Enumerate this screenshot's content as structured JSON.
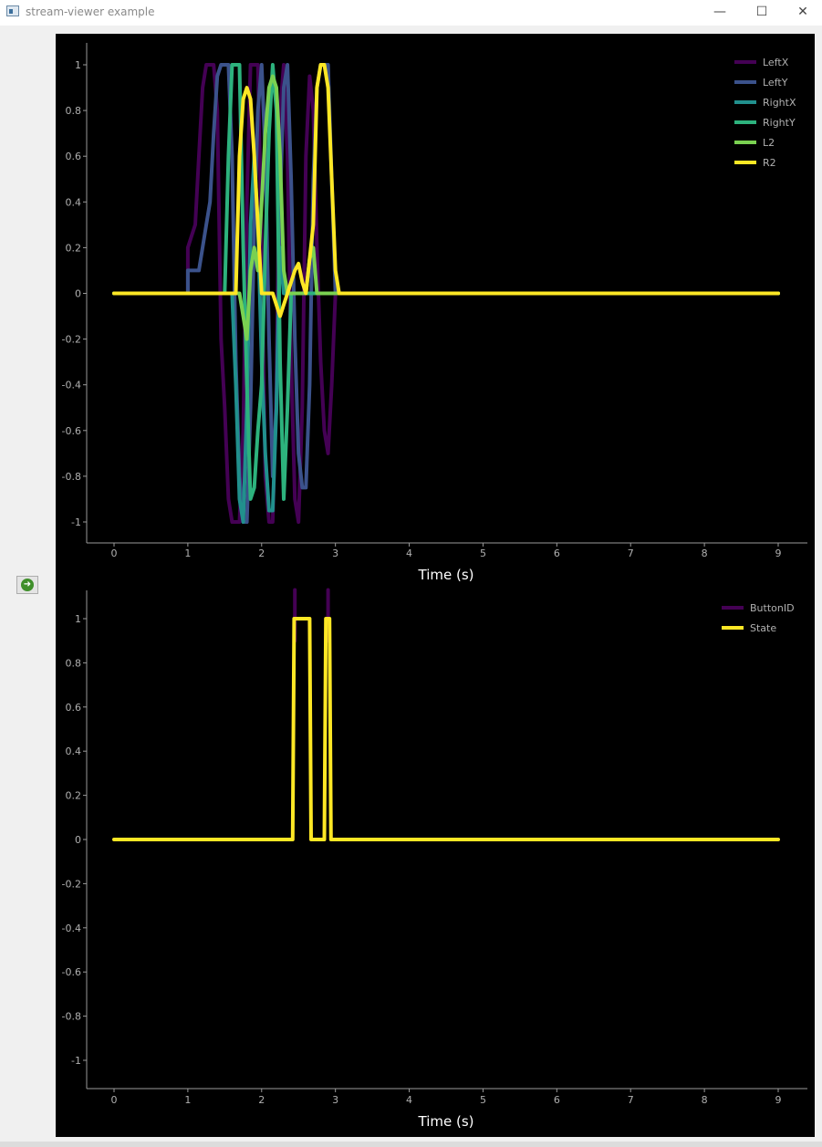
{
  "window": {
    "title": "stream-viewer example",
    "controls": {
      "minimize": "—",
      "maximize": "☐",
      "close": "✕"
    }
  },
  "sidebar": {
    "start_button_icon": "arrow-right-circle-icon"
  },
  "colors": {
    "background": "#000000",
    "axis": "#9a9a9a",
    "series": {
      "LeftX": "#440154",
      "LeftY": "#3b528b",
      "RightX": "#21908d",
      "RightY": "#2db27d",
      "L2": "#7ad151",
      "R2": "#fde725",
      "ButtonID": "#440154",
      "State": "#fde725"
    }
  },
  "chart_data": [
    {
      "type": "line",
      "xlabel": "Time (s)",
      "xlim": [
        0,
        9
      ],
      "ylim": [
        -1,
        1
      ],
      "xticks": [
        0,
        1,
        2,
        3,
        4,
        5,
        6,
        7,
        8,
        9
      ],
      "yticks": [
        1,
        0.8,
        0.6,
        0.4,
        0.2,
        0,
        -0.2,
        -0.4,
        -0.6,
        -0.8,
        -1
      ],
      "legend": "top-right",
      "series": [
        {
          "name": "LeftX",
          "color": "#440154",
          "points": [
            [
              0,
              0
            ],
            [
              1.0,
              0
            ],
            [
              1.0,
              0.2
            ],
            [
              1.05,
              0.25
            ],
            [
              1.1,
              0.3
            ],
            [
              1.15,
              0.6
            ],
            [
              1.2,
              0.9
            ],
            [
              1.25,
              1
            ],
            [
              1.35,
              1
            ],
            [
              1.4,
              0.8
            ],
            [
              1.45,
              -0.2
            ],
            [
              1.5,
              -0.5
            ],
            [
              1.55,
              -0.9
            ],
            [
              1.6,
              -1
            ],
            [
              1.7,
              -1
            ],
            [
              1.75,
              -0.6
            ],
            [
              1.8,
              0.4
            ],
            [
              1.85,
              1
            ],
            [
              1.95,
              1
            ],
            [
              2.0,
              0.2
            ],
            [
              2.05,
              -0.8
            ],
            [
              2.1,
              -1
            ],
            [
              2.15,
              -1
            ],
            [
              2.2,
              -0.4
            ],
            [
              2.25,
              0.8
            ],
            [
              2.3,
              1
            ],
            [
              2.35,
              0.6
            ],
            [
              2.4,
              -0.3
            ],
            [
              2.45,
              -0.9
            ],
            [
              2.5,
              -1
            ],
            [
              2.55,
              -0.5
            ],
            [
              2.6,
              0.6
            ],
            [
              2.65,
              0.95
            ],
            [
              2.7,
              0.8
            ],
            [
              2.75,
              0.2
            ],
            [
              2.8,
              -0.3
            ],
            [
              2.85,
              -0.6
            ],
            [
              2.9,
              -0.7
            ],
            [
              2.95,
              -0.4
            ],
            [
              3.0,
              0
            ],
            [
              9,
              0
            ]
          ]
        },
        {
          "name": "LeftY",
          "color": "#3b528b",
          "points": [
            [
              0,
              0
            ],
            [
              1.0,
              0
            ],
            [
              1.0,
              0.1
            ],
            [
              1.15,
              0.1
            ],
            [
              1.25,
              0.3
            ],
            [
              1.3,
              0.4
            ],
            [
              1.35,
              0.7
            ],
            [
              1.4,
              0.95
            ],
            [
              1.45,
              1
            ],
            [
              1.55,
              1
            ],
            [
              1.6,
              0.6
            ],
            [
              1.65,
              -0.3
            ],
            [
              1.7,
              -0.8
            ],
            [
              1.75,
              -1
            ],
            [
              1.8,
              -1
            ],
            [
              1.85,
              -0.5
            ],
            [
              1.9,
              0.3
            ],
            [
              1.95,
              0.8
            ],
            [
              2.0,
              1
            ],
            [
              2.05,
              0.6
            ],
            [
              2.1,
              -0.2
            ],
            [
              2.15,
              -0.8
            ],
            [
              2.2,
              -0.5
            ],
            [
              2.25,
              0.4
            ],
            [
              2.3,
              0.9
            ],
            [
              2.35,
              1
            ],
            [
              2.4,
              0.5
            ],
            [
              2.45,
              -0.2
            ],
            [
              2.5,
              -0.7
            ],
            [
              2.55,
              -0.85
            ],
            [
              2.6,
              -0.85
            ],
            [
              2.65,
              -0.4
            ],
            [
              2.7,
              0.5
            ],
            [
              2.75,
              0.9
            ],
            [
              2.8,
              1
            ],
            [
              2.9,
              1
            ],
            [
              2.95,
              0.5
            ],
            [
              3.0,
              0
            ],
            [
              9,
              0
            ]
          ]
        },
        {
          "name": "RightX",
          "color": "#21908d",
          "points": [
            [
              0,
              0
            ],
            [
              1.6,
              0
            ],
            [
              1.65,
              -0.4
            ],
            [
              1.7,
              -0.9
            ],
            [
              1.75,
              -1
            ],
            [
              1.8,
              -0.5
            ],
            [
              1.85,
              0.3
            ],
            [
              1.9,
              0.6
            ],
            [
              1.95,
              0.3
            ],
            [
              2.0,
              -0.3
            ],
            [
              2.05,
              -0.7
            ],
            [
              2.1,
              -0.95
            ],
            [
              2.15,
              -0.95
            ],
            [
              2.2,
              -0.5
            ],
            [
              2.25,
              0.2
            ],
            [
              2.3,
              0
            ],
            [
              9,
              0
            ]
          ]
        },
        {
          "name": "RightY",
          "color": "#2db27d",
          "points": [
            [
              0,
              0
            ],
            [
              1.5,
              0
            ],
            [
              1.55,
              0.6
            ],
            [
              1.6,
              1
            ],
            [
              1.7,
              1
            ],
            [
              1.75,
              0.2
            ],
            [
              1.8,
              -0.4
            ],
            [
              1.85,
              -0.9
            ],
            [
              1.9,
              -0.85
            ],
            [
              1.95,
              -0.6
            ],
            [
              2.0,
              -0.4
            ],
            [
              2.05,
              0.2
            ],
            [
              2.1,
              0.7
            ],
            [
              2.15,
              1
            ],
            [
              2.2,
              0.8
            ],
            [
              2.25,
              -0.3
            ],
            [
              2.3,
              -0.9
            ],
            [
              2.35,
              -0.5
            ],
            [
              2.4,
              0
            ],
            [
              9,
              0
            ]
          ]
        },
        {
          "name": "L2",
          "color": "#7ad151",
          "points": [
            [
              0,
              0
            ],
            [
              1.7,
              0
            ],
            [
              1.75,
              -0.1
            ],
            [
              1.8,
              -0.2
            ],
            [
              1.85,
              0.1
            ],
            [
              1.9,
              0.2
            ],
            [
              1.95,
              0.1
            ],
            [
              2.0,
              0.4
            ],
            [
              2.05,
              0.7
            ],
            [
              2.1,
              0.9
            ],
            [
              2.15,
              0.95
            ],
            [
              2.2,
              0.9
            ],
            [
              2.25,
              0.6
            ],
            [
              2.3,
              0.1
            ],
            [
              2.35,
              0
            ],
            [
              2.6,
              0
            ],
            [
              2.65,
              0.15
            ],
            [
              2.7,
              0.2
            ],
            [
              2.75,
              0
            ],
            [
              9,
              0
            ]
          ]
        },
        {
          "name": "R2",
          "color": "#fde725",
          "points": [
            [
              0,
              0
            ],
            [
              1.65,
              0
            ],
            [
              1.7,
              0.6
            ],
            [
              1.75,
              0.85
            ],
            [
              1.8,
              0.9
            ],
            [
              1.85,
              0.85
            ],
            [
              1.9,
              0.6
            ],
            [
              1.95,
              0.3
            ],
            [
              2.0,
              0
            ],
            [
              2.15,
              0
            ],
            [
              2.25,
              -0.1
            ],
            [
              2.3,
              -0.05
            ],
            [
              2.35,
              0
            ],
            [
              2.45,
              0.1
            ],
            [
              2.5,
              0.13
            ],
            [
              2.55,
              0.05
            ],
            [
              2.6,
              0
            ],
            [
              2.7,
              0.3
            ],
            [
              2.75,
              0.9
            ],
            [
              2.8,
              1
            ],
            [
              2.85,
              1
            ],
            [
              2.9,
              0.9
            ],
            [
              2.95,
              0.5
            ],
            [
              3.0,
              0.1
            ],
            [
              3.05,
              0
            ],
            [
              9,
              0
            ]
          ]
        }
      ]
    },
    {
      "type": "line",
      "xlabel": "Time (s)",
      "xlim": [
        0,
        9
      ],
      "ylim": [
        -1,
        1
      ],
      "xticks": [
        0,
        1,
        2,
        3,
        4,
        5,
        6,
        7,
        8,
        9
      ],
      "yticks": [
        1,
        0.8,
        0.6,
        0.4,
        0.2,
        0,
        -0.2,
        -0.4,
        -0.6,
        -0.8,
        -1
      ],
      "legend": "top-right",
      "series": [
        {
          "name": "ButtonID",
          "color": "#440154",
          "points": [
            [
              2.45,
              1.13
            ],
            [
              2.45,
              0.9
            ],
            [
              2.9,
              1.13
            ],
            [
              2.9,
              0.9
            ]
          ]
        },
        {
          "name": "State",
          "color": "#fde725",
          "points": [
            [
              0,
              0
            ],
            [
              2.42,
              0
            ],
            [
              2.44,
              1
            ],
            [
              2.65,
              1
            ],
            [
              2.67,
              0
            ],
            [
              2.85,
              0
            ],
            [
              2.87,
              1
            ],
            [
              2.92,
              1
            ],
            [
              2.94,
              0
            ],
            [
              9,
              0
            ]
          ]
        }
      ]
    }
  ]
}
